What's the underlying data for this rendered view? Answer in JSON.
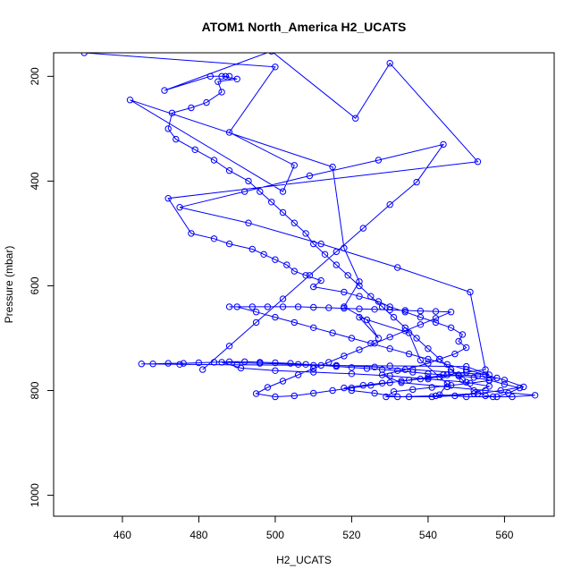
{
  "chart_data": {
    "type": "line",
    "title": "ATOM1 North_America H2_UCATS",
    "xlabel": "H2_UCATS",
    "ylabel": "Pressure (mbar)",
    "xlim": [
      442,
      573
    ],
    "ylim": [
      1040,
      155
    ],
    "y_reversed": true,
    "x_ticks": [
      460,
      480,
      500,
      520,
      540,
      560
    ],
    "y_ticks": [
      200,
      400,
      600,
      800,
      1000
    ],
    "grid": false,
    "legend": "none",
    "series": [
      {
        "color": "#0000ff",
        "marker": "open-circle",
        "points": [
          [
            450,
            155
          ],
          [
            500,
            182
          ],
          [
            488,
            307
          ],
          [
            505,
            370
          ],
          [
            502,
            420
          ],
          [
            462,
            245
          ],
          [
            515,
            373
          ],
          [
            518,
            528
          ],
          [
            522,
            592
          ],
          [
            518,
            640
          ],
          [
            524,
            665
          ],
          [
            527,
            700
          ],
          [
            522,
            660
          ],
          [
            535,
            690
          ],
          [
            538,
            742
          ],
          [
            545,
            787
          ],
          [
            543,
            808
          ],
          [
            550,
            812
          ],
          [
            557,
            812
          ],
          [
            562,
            812
          ],
          [
            568,
            809
          ],
          [
            555,
            800
          ],
          [
            545,
            793
          ],
          [
            533,
            785
          ],
          [
            528,
            770
          ],
          [
            534,
            760
          ],
          [
            540,
            748
          ],
          [
            543,
            740
          ],
          [
            547,
            730
          ],
          [
            550,
            718
          ],
          [
            548,
            706
          ],
          [
            549,
            693
          ],
          [
            546,
            680
          ],
          [
            542,
            670
          ],
          [
            538,
            660
          ],
          [
            534,
            650
          ],
          [
            530,
            640
          ],
          [
            527,
            630
          ],
          [
            522,
            620
          ],
          [
            518,
            612
          ],
          [
            510,
            602
          ],
          [
            512,
            590
          ],
          [
            508,
            580
          ],
          [
            505,
            572
          ],
          [
            503,
            560
          ],
          [
            500,
            550
          ],
          [
            497,
            540
          ],
          [
            494,
            530
          ],
          [
            488,
            520
          ],
          [
            484,
            510
          ],
          [
            478,
            500
          ],
          [
            472,
            433
          ],
          [
            553,
            363
          ],
          [
            530,
            175
          ],
          [
            521,
            280
          ],
          [
            499,
            152
          ],
          [
            471,
            227
          ],
          [
            483,
            200
          ],
          [
            488,
            200
          ],
          [
            487,
            200
          ],
          [
            486,
            200
          ],
          [
            490,
            205
          ],
          [
            485,
            210
          ],
          [
            486,
            230
          ],
          [
            482,
            250
          ],
          [
            478,
            260
          ],
          [
            473,
            270
          ],
          [
            472,
            300
          ],
          [
            474,
            320
          ],
          [
            479,
            340
          ],
          [
            484,
            360
          ],
          [
            488,
            380
          ],
          [
            493,
            400
          ],
          [
            496,
            420
          ],
          [
            499,
            440
          ],
          [
            502,
            460
          ],
          [
            505,
            480
          ],
          [
            508,
            500
          ],
          [
            510,
            520
          ],
          [
            513,
            540
          ],
          [
            516,
            560
          ],
          [
            519,
            580
          ],
          [
            522,
            600
          ],
          [
            525,
            620
          ],
          [
            528,
            640
          ],
          [
            531,
            660
          ],
          [
            534,
            680
          ],
          [
            537,
            700
          ],
          [
            540,
            720
          ],
          [
            543,
            740
          ],
          [
            546,
            760
          ],
          [
            549,
            780
          ],
          [
            552,
            800
          ],
          [
            555,
            810
          ],
          [
            558,
            812
          ],
          [
            561,
            805
          ],
          [
            564,
            795
          ],
          [
            560,
            788
          ],
          [
            556,
            780
          ],
          [
            552,
            775
          ],
          [
            548,
            772
          ],
          [
            544,
            770
          ],
          [
            540,
            768
          ],
          [
            536,
            765
          ],
          [
            532,
            762
          ],
          [
            528,
            760
          ],
          [
            524,
            758
          ],
          [
            520,
            756
          ],
          [
            516,
            754
          ],
          [
            512,
            752
          ],
          [
            508,
            750
          ],
          [
            504,
            748
          ],
          [
            500,
            747
          ],
          [
            496,
            746
          ],
          [
            492,
            745
          ],
          [
            488,
            745
          ],
          [
            484,
            746
          ],
          [
            480,
            747
          ],
          [
            476,
            748
          ],
          [
            472,
            748
          ],
          [
            468,
            749
          ],
          [
            465,
            749
          ],
          [
            475,
            750
          ],
          [
            490,
            751
          ],
          [
            510,
            752
          ],
          [
            530,
            753
          ],
          [
            550,
            754
          ],
          [
            556,
            770
          ],
          [
            546,
            765
          ],
          [
            536,
            760
          ],
          [
            526,
            755
          ],
          [
            516,
            752
          ],
          [
            506,
            750
          ],
          [
            496,
            748
          ],
          [
            486,
            746
          ],
          [
            491,
            757
          ],
          [
            500,
            762
          ],
          [
            510,
            765
          ],
          [
            520,
            768
          ],
          [
            530,
            772
          ],
          [
            540,
            778
          ],
          [
            550,
            784
          ],
          [
            556,
            792
          ],
          [
            552,
            806
          ],
          [
            542,
            810
          ],
          [
            532,
            812
          ],
          [
            526,
            805
          ],
          [
            520,
            800
          ],
          [
            518,
            795
          ],
          [
            523,
            790
          ],
          [
            528,
            786
          ],
          [
            533,
            782
          ],
          [
            538,
            778
          ],
          [
            543,
            774
          ],
          [
            548,
            770
          ],
          [
            553,
            772
          ],
          [
            558,
            776
          ],
          [
            556,
            781
          ],
          [
            551,
            786
          ],
          [
            546,
            790
          ],
          [
            541,
            794
          ],
          [
            536,
            798
          ],
          [
            531,
            802
          ],
          [
            529,
            812
          ],
          [
            535,
            812
          ],
          [
            541,
            812
          ],
          [
            547,
            810
          ],
          [
            553,
            806
          ],
          [
            559,
            800
          ],
          [
            565,
            793
          ],
          [
            560,
            780
          ],
          [
            555,
            770
          ],
          [
            550,
            760
          ],
          [
            545,
            750
          ],
          [
            540,
            740
          ],
          [
            535,
            730
          ],
          [
            530,
            720
          ],
          [
            525,
            710
          ],
          [
            520,
            700
          ],
          [
            515,
            690
          ],
          [
            510,
            680
          ],
          [
            505,
            670
          ],
          [
            500,
            660
          ],
          [
            495,
            650
          ],
          [
            490,
            640
          ],
          [
            488,
            640
          ],
          [
            494,
            640
          ],
          [
            498,
            640
          ],
          [
            502,
            640
          ],
          [
            506,
            640
          ],
          [
            510,
            641
          ],
          [
            514,
            642
          ],
          [
            518,
            643
          ],
          [
            522,
            644
          ],
          [
            526,
            645
          ],
          [
            530,
            646
          ],
          [
            534,
            647
          ],
          [
            538,
            648
          ],
          [
            542,
            649
          ],
          [
            546,
            650
          ],
          [
            542,
            662
          ],
          [
            538,
            674
          ],
          [
            534,
            686
          ],
          [
            530,
            698
          ],
          [
            526,
            710
          ],
          [
            522,
            722
          ],
          [
            518,
            734
          ],
          [
            514,
            746
          ],
          [
            510,
            758
          ],
          [
            506,
            770
          ],
          [
            502,
            782
          ],
          [
            498,
            794
          ],
          [
            495,
            806
          ],
          [
            500,
            812
          ],
          [
            505,
            810
          ],
          [
            510,
            805
          ],
          [
            515,
            800
          ],
          [
            520,
            795
          ],
          [
            525,
            790
          ],
          [
            530,
            785
          ],
          [
            535,
            780
          ],
          [
            540,
            775
          ],
          [
            545,
            770
          ],
          [
            550,
            765
          ],
          [
            555,
            760
          ],
          [
            551,
            612
          ],
          [
            532,
            565
          ],
          [
            512,
            520
          ],
          [
            493,
            480
          ],
          [
            475,
            450
          ],
          [
            492,
            420
          ],
          [
            509,
            390
          ],
          [
            527,
            360
          ],
          [
            544,
            330
          ],
          [
            537,
            402
          ],
          [
            530,
            445
          ],
          [
            523,
            490
          ],
          [
            516,
            535
          ],
          [
            509,
            580
          ],
          [
            502,
            625
          ],
          [
            495,
            670
          ],
          [
            488,
            715
          ],
          [
            481,
            760
          ]
        ]
      }
    ]
  }
}
